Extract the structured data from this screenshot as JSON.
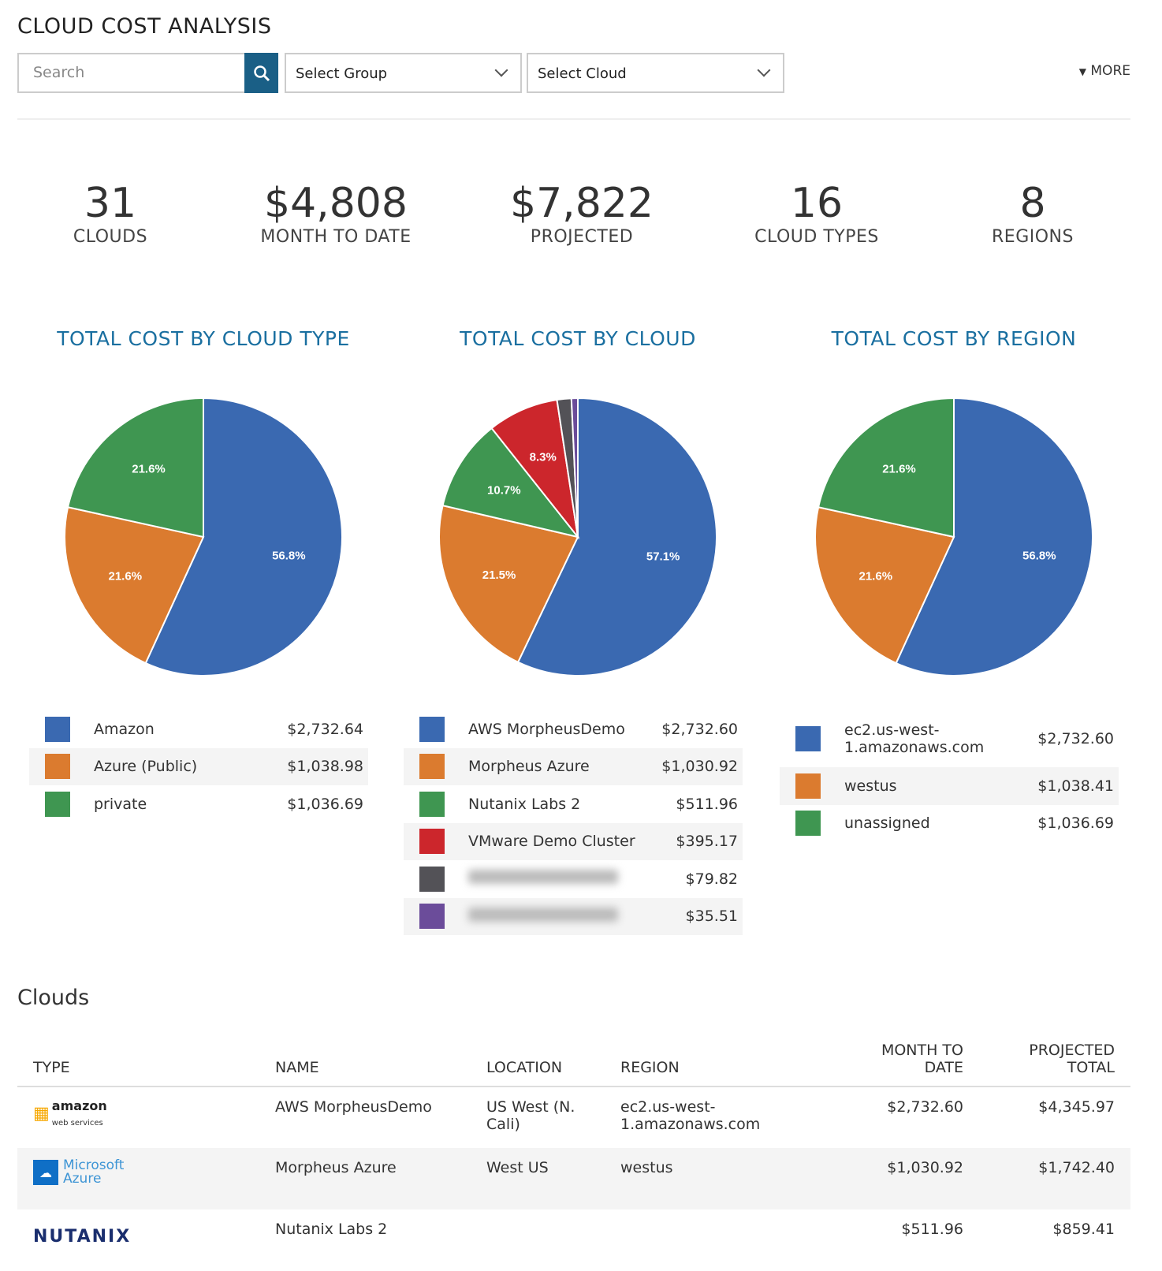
{
  "title": "CLOUD COST ANALYSIS",
  "search": {
    "placeholder": "Search"
  },
  "filters": {
    "group": "Select Group",
    "cloud": "Select Cloud",
    "more": "MORE"
  },
  "stats": [
    {
      "value": "31",
      "label": "CLOUDS"
    },
    {
      "value": "$4,808",
      "label": "MONTH TO DATE"
    },
    {
      "value": "$7,822",
      "label": "PROJECTED"
    },
    {
      "value": "16",
      "label": "CLOUD TYPES"
    },
    {
      "value": "8",
      "label": "REGIONS"
    }
  ],
  "chart_data": [
    {
      "type": "pie",
      "title": "TOTAL COST BY CLOUD TYPE",
      "categories": [
        "Amazon",
        "Azure (Public)",
        "private"
      ],
      "values": [
        2732.64,
        1038.98,
        1036.69
      ],
      "value_labels": [
        "$2,732.64",
        "$1,038.98",
        "$1,036.69"
      ],
      "percent_labels": [
        "56.8%",
        "21.6%",
        "21.6%"
      ],
      "colors": [
        "#3a69b1",
        "#db7b2f",
        "#3f9651"
      ]
    },
    {
      "type": "pie",
      "title": "TOTAL COST BY CLOUD",
      "categories": [
        "AWS MorpheusDemo",
        "Morpheus Azure",
        "Nutanix Labs 2",
        "VMware Demo Cluster",
        "",
        ""
      ],
      "values": [
        2732.6,
        1030.92,
        511.96,
        395.17,
        79.82,
        35.51
      ],
      "value_labels": [
        "$2,732.60",
        "$1,030.92",
        "$511.96",
        "$395.17",
        "$79.82",
        "$35.51"
      ],
      "percent_labels": [
        "57.1%",
        "21.5%",
        "10.7%",
        "8.3%",
        "",
        ""
      ],
      "colors": [
        "#3a69b1",
        "#db7b2f",
        "#3f9651",
        "#cc262c",
        "#535257",
        "#6b4c9a"
      ]
    },
    {
      "type": "pie",
      "title": "TOTAL COST BY REGION",
      "categories": [
        "ec2.us-west-1.amazonaws.com",
        "westus",
        "unassigned"
      ],
      "values": [
        2732.6,
        1038.41,
        1036.69
      ],
      "value_labels": [
        "$2,732.60",
        "$1,038.41",
        "$1,036.69"
      ],
      "percent_labels": [
        "56.8%",
        "21.6%",
        "21.6%"
      ],
      "colors": [
        "#3a69b1",
        "#db7b2f",
        "#3f9651"
      ]
    }
  ],
  "clouds": {
    "heading": "Clouds",
    "columns": [
      "TYPE",
      "NAME",
      "LOCATION",
      "REGION",
      "MONTH TO DATE",
      "PROJECTED TOTAL"
    ],
    "rows": [
      {
        "type": "amazon web services",
        "name": "AWS MorpheusDemo",
        "location": "US West (N. Cali)",
        "region": "ec2.us-west-1.amazonaws.com",
        "mtd": "$2,732.60",
        "projected": "$4,345.97"
      },
      {
        "type": "Microsoft Azure",
        "name": "Morpheus Azure",
        "location": "West US",
        "region": "westus",
        "mtd": "$1,030.92",
        "projected": "$1,742.40"
      },
      {
        "type": "NUTANIX",
        "name": "Nutanix Labs 2",
        "location": "",
        "region": "",
        "mtd": "$511.96",
        "projected": "$859.41"
      }
    ]
  }
}
